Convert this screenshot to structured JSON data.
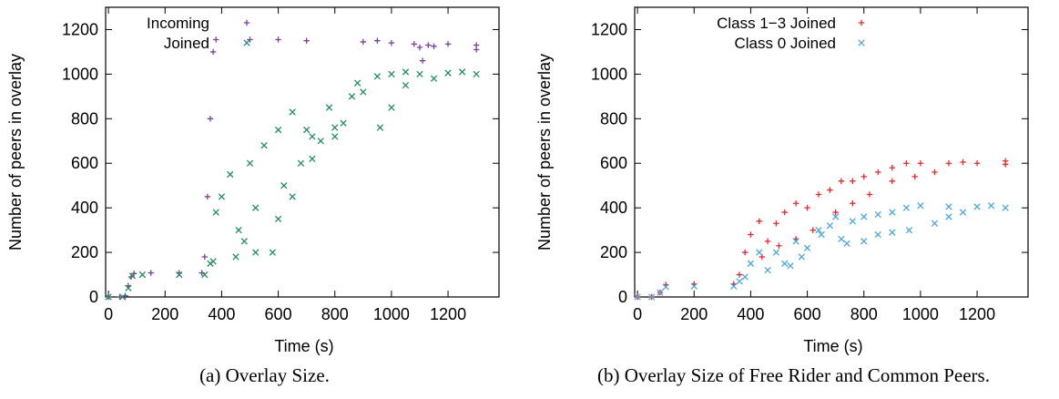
{
  "chart_data": [
    {
      "type": "scatter",
      "caption": "(a) Overlay Size.",
      "xlabel": "Time (s)",
      "ylabel": "Number of peers in overlay",
      "xlim": [
        -10,
        1380
      ],
      "ylim": [
        0,
        1300
      ],
      "xticks": [
        "0",
        "200",
        "400",
        "600",
        "800",
        "1000",
        "1200"
      ],
      "yticks": [
        "0",
        "200",
        "400",
        "600",
        "800",
        "1000",
        "1200"
      ],
      "grid": false,
      "legend_position": "top-left",
      "series": [
        {
          "name": "Incoming",
          "marker": "plus",
          "color": "#7b3f9c",
          "points": [
            [
              0,
              0
            ],
            [
              40,
              0
            ],
            [
              60,
              5
            ],
            [
              70,
              50
            ],
            [
              80,
              90
            ],
            [
              90,
              105
            ],
            [
              150,
              108
            ],
            [
              250,
              108
            ],
            [
              330,
              108
            ],
            [
              340,
              180
            ],
            [
              350,
              450
            ],
            [
              360,
              800
            ],
            [
              370,
              1100
            ],
            [
              380,
              1155
            ],
            [
              500,
              1155
            ],
            [
              700,
              1150
            ],
            [
              900,
              1145
            ],
            [
              1000,
              1140
            ],
            [
              1080,
              1135
            ],
            [
              1100,
              1120
            ],
            [
              1110,
              1060
            ],
            [
              1130,
              1130
            ],
            [
              1200,
              1135
            ],
            [
              1300,
              1130
            ],
            [
              1300,
              1110
            ],
            [
              1150,
              1125
            ],
            [
              950,
              1150
            ],
            [
              600,
              1155
            ]
          ]
        },
        {
          "name": "Joined",
          "marker": "cross",
          "color": "#1f8f5f",
          "points": [
            [
              0,
              0
            ],
            [
              50,
              0
            ],
            [
              70,
              40
            ],
            [
              85,
              95
            ],
            [
              120,
              100
            ],
            [
              250,
              100
            ],
            [
              340,
              100
            ],
            [
              360,
              150
            ],
            [
              370,
              160
            ],
            [
              380,
              380
            ],
            [
              400,
              450
            ],
            [
              430,
              550
            ],
            [
              460,
              300
            ],
            [
              480,
              250
            ],
            [
              500,
              600
            ],
            [
              520,
              400
            ],
            [
              550,
              680
            ],
            [
              580,
              200
            ],
            [
              600,
              750
            ],
            [
              620,
              500
            ],
            [
              650,
              830
            ],
            [
              680,
              600
            ],
            [
              700,
              750
            ],
            [
              720,
              720
            ],
            [
              750,
              700
            ],
            [
              780,
              850
            ],
            [
              800,
              760
            ],
            [
              830,
              780
            ],
            [
              860,
              900
            ],
            [
              900,
              920
            ],
            [
              950,
              990
            ],
            [
              1000,
              1000
            ],
            [
              1100,
              1000
            ],
            [
              1200,
              1005
            ],
            [
              1300,
              1000
            ],
            [
              1150,
              980
            ],
            [
              1050,
              1010
            ],
            [
              960,
              760
            ],
            [
              1000,
              850
            ],
            [
              1050,
              950
            ],
            [
              450,
              180
            ],
            [
              520,
              200
            ],
            [
              600,
              350
            ],
            [
              650,
              450
            ],
            [
              720,
              620
            ],
            [
              800,
              720
            ],
            [
              880,
              960
            ],
            [
              1250,
              1010
            ]
          ]
        }
      ]
    },
    {
      "type": "scatter",
      "caption": "(b) Overlay Size of Free Rider and Common Peers.",
      "xlabel": "Time (s)",
      "ylabel": "Number of peers in overlay",
      "xlim": [
        -10,
        1380
      ],
      "ylim": [
        0,
        1300
      ],
      "xticks": [
        "0",
        "200",
        "400",
        "600",
        "800",
        "1000",
        "1200"
      ],
      "yticks": [
        "0",
        "200",
        "400",
        "600",
        "800",
        "1000",
        "1200"
      ],
      "grid": false,
      "legend_position": "top-right",
      "series": [
        {
          "name": "Class 1−3 Joined",
          "marker": "plus",
          "color": "#e8262a",
          "points": [
            [
              0,
              0
            ],
            [
              50,
              0
            ],
            [
              80,
              20
            ],
            [
              100,
              55
            ],
            [
              200,
              58
            ],
            [
              340,
              58
            ],
            [
              360,
              100
            ],
            [
              380,
              200
            ],
            [
              400,
              280
            ],
            [
              430,
              340
            ],
            [
              460,
              250
            ],
            [
              490,
              330
            ],
            [
              520,
              380
            ],
            [
              560,
              420
            ],
            [
              600,
              400
            ],
            [
              640,
              460
            ],
            [
              680,
              480
            ],
            [
              720,
              520
            ],
            [
              760,
              520
            ],
            [
              800,
              540
            ],
            [
              850,
              560
            ],
            [
              900,
              580
            ],
            [
              950,
              600
            ],
            [
              1000,
              600
            ],
            [
              1100,
              600
            ],
            [
              1200,
              600
            ],
            [
              1300,
              595
            ],
            [
              1050,
              560
            ],
            [
              980,
              540
            ],
            [
              900,
              520
            ],
            [
              820,
              460
            ],
            [
              760,
              420
            ],
            [
              700,
              380
            ],
            [
              620,
              300
            ],
            [
              560,
              260
            ],
            [
              500,
              230
            ],
            [
              440,
              180
            ],
            [
              1300,
              610
            ],
            [
              1150,
              605
            ]
          ]
        },
        {
          "name": "Class 0 Joined",
          "marker": "cross",
          "color": "#4aa8e0",
          "points": [
            [
              0,
              0
            ],
            [
              50,
              0
            ],
            [
              80,
              20
            ],
            [
              100,
              45
            ],
            [
              200,
              48
            ],
            [
              340,
              48
            ],
            [
              360,
              70
            ],
            [
              380,
              90
            ],
            [
              400,
              150
            ],
            [
              430,
              200
            ],
            [
              460,
              120
            ],
            [
              490,
              200
            ],
            [
              520,
              150
            ],
            [
              560,
              250
            ],
            [
              600,
              220
            ],
            [
              640,
              300
            ],
            [
              680,
              320
            ],
            [
              720,
              260
            ],
            [
              760,
              340
            ],
            [
              800,
              360
            ],
            [
              850,
              370
            ],
            [
              900,
              380
            ],
            [
              950,
              400
            ],
            [
              1000,
              410
            ],
            [
              1100,
              405
            ],
            [
              1200,
              405
            ],
            [
              1300,
              400
            ],
            [
              960,
              300
            ],
            [
              900,
              290
            ],
            [
              850,
              280
            ],
            [
              800,
              250
            ],
            [
              740,
              240
            ],
            [
              1050,
              330
            ],
            [
              1100,
              360
            ],
            [
              1150,
              380
            ],
            [
              700,
              360
            ],
            [
              650,
              280
            ],
            [
              580,
              180
            ],
            [
              540,
              140
            ],
            [
              1250,
              410
            ]
          ]
        }
      ]
    }
  ]
}
